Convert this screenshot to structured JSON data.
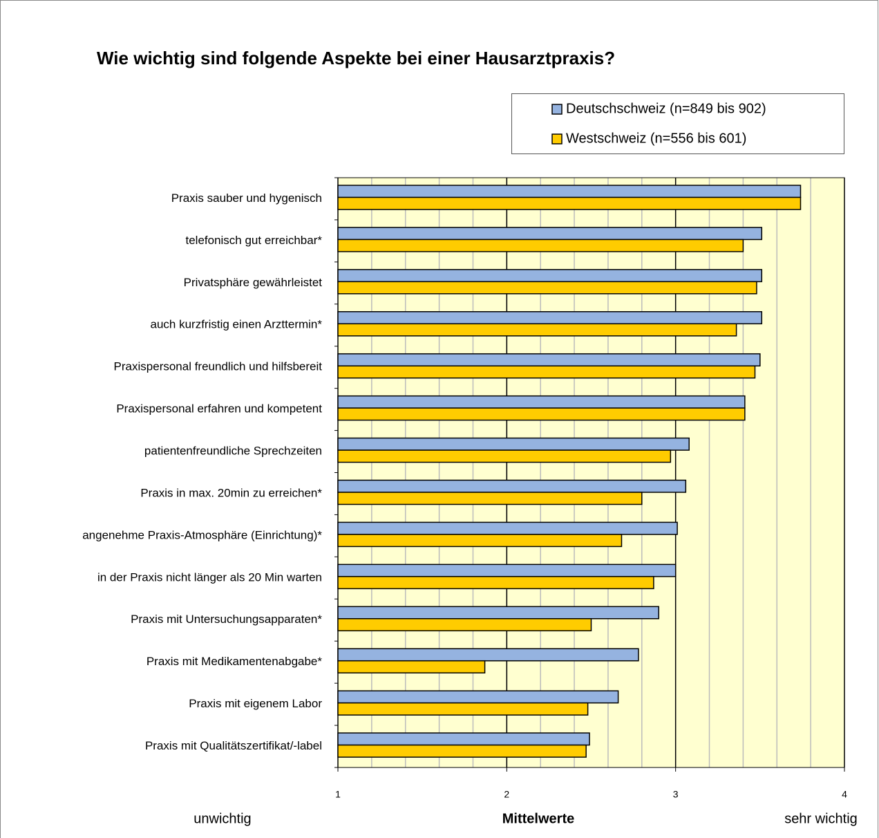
{
  "chart_data": {
    "type": "bar",
    "orientation": "horizontal",
    "title": "Wie wichtig sind folgende Aspekte bei einer Hausarztpraxis?",
    "xlabel": "Mittelwerte",
    "annotations": [
      "unwichtig",
      "sehr wichtig"
    ],
    "categories": [
      "Praxis sauber und hygenisch",
      "telefonisch gut erreichbar*",
      "Privatsphäre gewährleistet",
      "auch kurzfristig einen Arzttermin*",
      "Praxispersonal freundlich und hilfsbereit",
      "Praxispersonal erfahren und kompetent",
      "patientenfreundliche Sprechzeiten",
      "Praxis in max. 20min zu erreichen*",
      "angenehme Praxis-Atmosphäre (Einrichtung)*",
      "in der Praxis nicht länger als 20 Min warten",
      "Praxis mit Untersuchungsapparaten*",
      "Praxis mit Medikamentenabgabe*",
      "Praxis mit eigenem Labor",
      "Praxis mit Qualitätszertifikat/-label"
    ],
    "series": [
      {
        "name": "Deutschschweiz (n=849 bis 902)",
        "color": "#95b3e0",
        "values": [
          3.74,
          3.51,
          3.51,
          3.51,
          3.5,
          3.41,
          3.08,
          3.06,
          3.01,
          3.0,
          2.9,
          2.78,
          2.66,
          2.49
        ]
      },
      {
        "name": "Westschweiz (n=556 bis 601)",
        "color": "#ffcc00",
        "values": [
          3.74,
          3.4,
          3.48,
          3.36,
          3.47,
          3.41,
          2.97,
          2.8,
          2.68,
          2.87,
          2.5,
          1.87,
          2.48,
          2.47
        ]
      }
    ],
    "xlim": [
      1,
      4
    ],
    "xticks": [
      1,
      2,
      3,
      4
    ],
    "minor_grid_step": 0.2,
    "grid": true,
    "plot_background": "#ffffd0",
    "legend": "top-right"
  }
}
